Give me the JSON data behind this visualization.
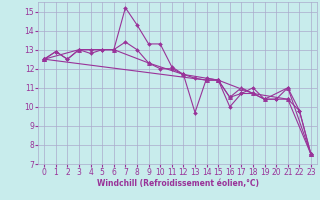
{
  "xlabel": "Windchill (Refroidissement éolien,°C)",
  "bg_color": "#c8ecec",
  "grid_color": "#aaaacc",
  "line_color": "#993399",
  "ylim": [
    7,
    15.5
  ],
  "xlim": [
    -0.5,
    23.5
  ],
  "yticks": [
    7,
    8,
    9,
    10,
    11,
    12,
    13,
    14,
    15
  ],
  "xticks": [
    0,
    1,
    2,
    3,
    4,
    5,
    6,
    7,
    8,
    9,
    10,
    11,
    12,
    13,
    14,
    15,
    16,
    17,
    18,
    19,
    20,
    21,
    22,
    23
  ],
  "series1_x": [
    0,
    1,
    2,
    3,
    4,
    5,
    6,
    7,
    8,
    9,
    10,
    11,
    12,
    13,
    14,
    15,
    16,
    17,
    18,
    19,
    20,
    21,
    22,
    23
  ],
  "series1_y": [
    12.5,
    12.9,
    12.5,
    13.0,
    13.0,
    13.0,
    13.0,
    15.2,
    14.3,
    13.3,
    13.3,
    12.1,
    11.7,
    9.7,
    11.5,
    11.4,
    10.0,
    10.7,
    11.0,
    10.4,
    10.4,
    11.0,
    9.8,
    7.5
  ],
  "series2_x": [
    0,
    1,
    2,
    3,
    4,
    5,
    6,
    7,
    8,
    9,
    10,
    11,
    12,
    13,
    14,
    15,
    16,
    17,
    18,
    19,
    20,
    21,
    22,
    23
  ],
  "series2_y": [
    12.5,
    12.9,
    12.5,
    13.0,
    12.8,
    13.0,
    13.0,
    13.4,
    13.0,
    12.3,
    12.0,
    12.0,
    11.7,
    11.5,
    11.4,
    11.4,
    10.5,
    10.7,
    10.7,
    10.4,
    10.4,
    10.4,
    9.8,
    7.5
  ],
  "series3_x": [
    0,
    3,
    6,
    9,
    12,
    15,
    18,
    21,
    23
  ],
  "series3_y": [
    12.5,
    13.0,
    13.0,
    12.3,
    11.7,
    11.4,
    10.7,
    10.4,
    7.5
  ],
  "series4_x": [
    0,
    14,
    15,
    16,
    17,
    19,
    21,
    23
  ],
  "series4_y": [
    12.5,
    11.4,
    11.4,
    10.5,
    11.0,
    10.4,
    11.0,
    7.5
  ],
  "tick_fontsize": 5.5,
  "xlabel_fontsize": 5.5
}
